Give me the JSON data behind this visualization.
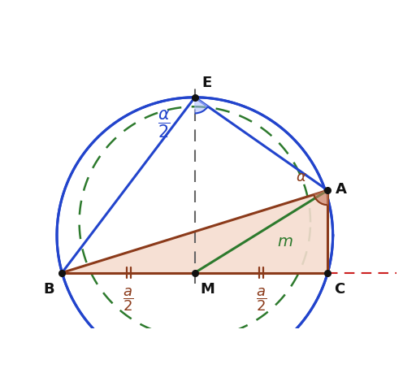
{
  "bg_color": "#ffffff",
  "blue_circle_color": "#2244cc",
  "green_dashed_color": "#2d7a2d",
  "triangle_fill": "#f5ddd0",
  "triangle_edge": "#8b3a1a",
  "median_color": "#2d7a2d",
  "dashed_line_color": "#666666",
  "red_dashed_color": "#cc2222",
  "point_color": "#111111",
  "angle_fill_blue": "#aabbff",
  "angle_fill_brown": "#c87a60",
  "text_blue": "#2244cc",
  "text_brown": "#8b3a1a",
  "text_black": "#111111",
  "text_green": "#2d7a2d",
  "B": [
    -1.0,
    0.0
  ],
  "C": [
    1.0,
    0.0
  ],
  "M": [
    0.0,
    0.0
  ],
  "A": [
    1.0,
    0.62
  ],
  "E": [
    0.0,
    1.32
  ],
  "figsize": [
    4.96,
    4.75
  ],
  "dpi": 100,
  "xlim": [
    -1.45,
    1.55
  ],
  "ylim": [
    -0.42,
    1.62
  ]
}
